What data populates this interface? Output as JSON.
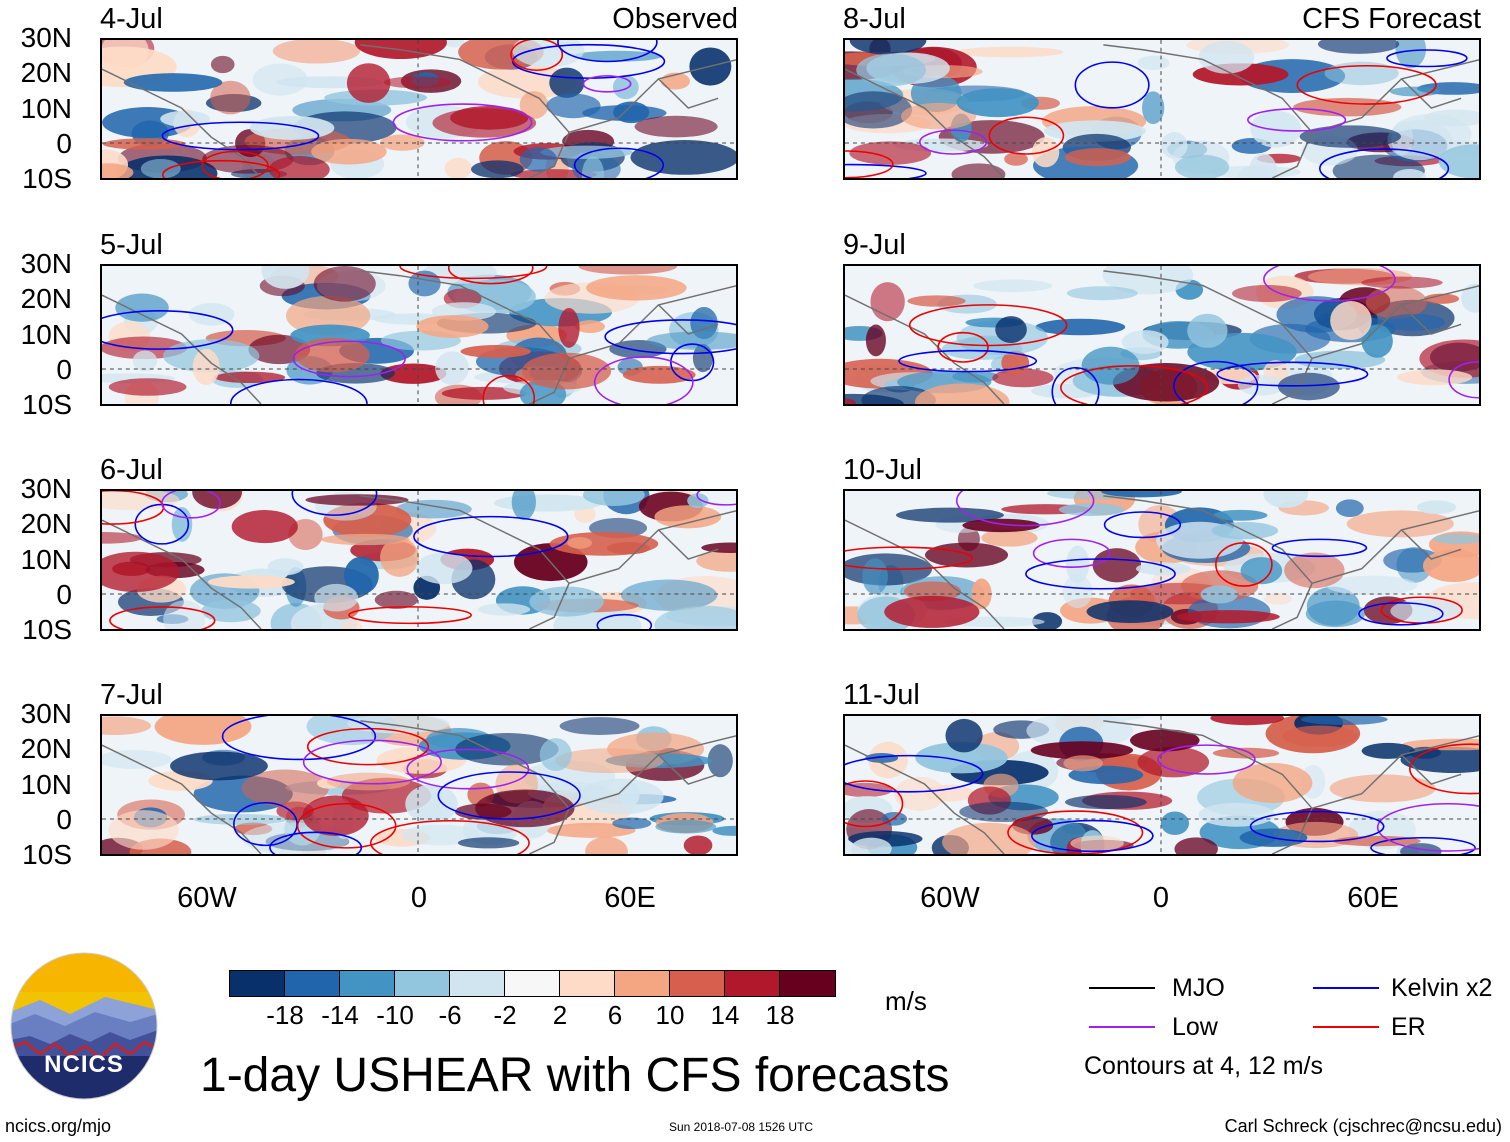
{
  "observed_title": "Observed",
  "forecast_title": "CFS Forecast",
  "observed_dates": [
    "4-Jul",
    "5-Jul",
    "6-Jul",
    "7-Jul"
  ],
  "forecast_dates": [
    "8-Jul",
    "9-Jul",
    "10-Jul",
    "11-Jul"
  ],
  "lat_labels": [
    "30N",
    "20N",
    "10N",
    "0",
    "10S"
  ],
  "lon_labels": [
    "60W",
    "0",
    "60E"
  ],
  "colorbar": {
    "colors": [
      "#08306b",
      "#2166ac",
      "#4393c3",
      "#92c5de",
      "#d1e5f0",
      "#f7f7f7",
      "#fddbc7",
      "#f4a582",
      "#d6604d",
      "#b2182b",
      "#67001f"
    ],
    "ticks": [
      "-18",
      "-14",
      "-10",
      "-6",
      "-2",
      "2",
      "6",
      "10",
      "14",
      "18"
    ],
    "units": "m/s"
  },
  "legend": {
    "items": [
      {
        "label": "MJO",
        "color": "#000000"
      },
      {
        "label": "Kelvin x2",
        "color": "#0000ee"
      },
      {
        "label": "Low",
        "color": "#a020f0"
      },
      {
        "label": "ER",
        "color": "#ee0000"
      }
    ],
    "contours_note": "Contours at 4, 12 m/s"
  },
  "main_title": "1-day USHEAR with CFS forecasts",
  "logo_text": "NCICS",
  "footer_left": "ncics.org/mjo",
  "footer_center": "Sun 2018-07-08 1526 UTC",
  "footer_right": "Carl Schreck (cjschrec@ncsu.edu)"
}
